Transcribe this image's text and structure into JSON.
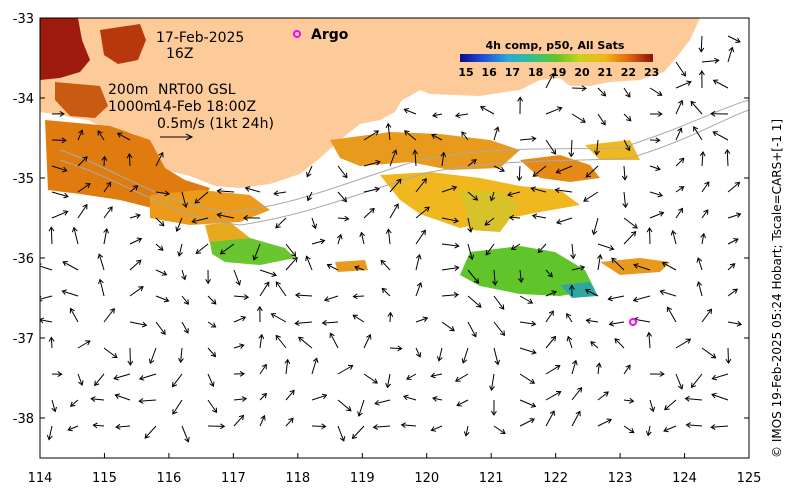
{
  "map": {
    "credit": "© IMOS 19-Feb-2025 05:24 Hobart; Tscale=CARS+[-1 1]",
    "annotations": {
      "date": "17-Feb-2025",
      "hour": "16Z",
      "contour_200": "200m",
      "contour_1000": "1000m",
      "altimetry_source": "NRT00 GSL",
      "altimetry_time": "14-Feb 18:00Z",
      "velocity_scale": "0.5m/s (1kt 24h)"
    },
    "argo": {
      "label": "Argo",
      "marker_color": "#ff00ff",
      "float_position": {
        "lon": 123.2,
        "lat": -36.8
      }
    },
    "colorbar": {
      "title": "4h comp, p50, All Sats",
      "ticks": [
        "15",
        "16",
        "17",
        "18",
        "19",
        "20",
        "21",
        "22",
        "23"
      ],
      "range": [
        15,
        23
      ]
    },
    "axes": {
      "x_ticks": [
        "114",
        "115",
        "116",
        "117",
        "118",
        "119",
        "120",
        "121",
        "122",
        "123",
        "124",
        "125"
      ],
      "y_ticks": [
        "-33",
        "-34",
        "-35",
        "-36",
        "-37",
        "-38"
      ],
      "lon_range": [
        114,
        125
      ],
      "lat_range": [
        -38.5,
        -33
      ]
    },
    "colors": {
      "land": "#fdcb9a",
      "warm_sst": "#e07b10",
      "mid_sst": "#5fc52a",
      "cool_sst": "#2fa7a0",
      "hot_sst": "#9c1a0e",
      "arrow": "#000000",
      "isobath": "#aaaaaa"
    }
  }
}
